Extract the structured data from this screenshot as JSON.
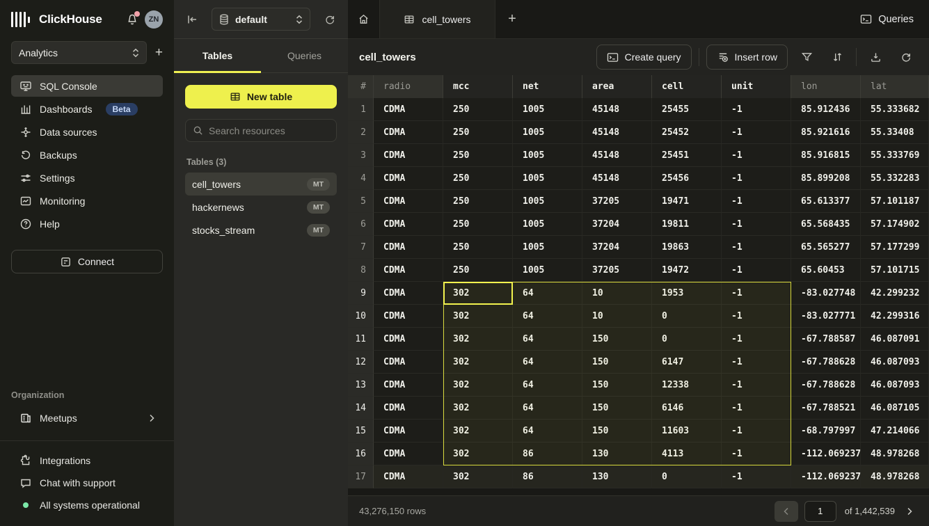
{
  "sidebar": {
    "brand": "ClickHouse",
    "avatar_initials": "ZN",
    "workspace": "Analytics",
    "nav": [
      {
        "label": "SQL Console",
        "active": true
      },
      {
        "label": "Dashboards",
        "badge": "Beta"
      },
      {
        "label": "Data sources"
      },
      {
        "label": "Backups"
      },
      {
        "label": "Settings"
      },
      {
        "label": "Monitoring"
      },
      {
        "label": "Help"
      }
    ],
    "connect_label": "Connect",
    "organization_label": "Organization",
    "org_items": [
      {
        "label": "Meetups"
      }
    ],
    "bottom_items": [
      {
        "label": "Integrations"
      },
      {
        "label": "Chat with support"
      },
      {
        "label": "All systems operational"
      }
    ]
  },
  "explorer": {
    "database": "default",
    "tabs": [
      {
        "label": "Tables",
        "active": true
      },
      {
        "label": "Queries",
        "active": false
      }
    ],
    "new_table_label": "New table",
    "search": {
      "placeholder": "Search resources"
    },
    "section_label": "Tables (3)",
    "tables": [
      {
        "name": "cell_towers",
        "badge": "MT",
        "active": true
      },
      {
        "name": "hackernews",
        "badge": "MT",
        "active": false
      },
      {
        "name": "stocks_stream",
        "badge": "MT",
        "active": false
      }
    ]
  },
  "main": {
    "open_tab": "cell_towers",
    "queries_label": "Queries",
    "title": "cell_towers",
    "create_query_label": "Create query",
    "insert_row_label": "Insert row",
    "table": {
      "columns": [
        "#",
        "radio",
        "mcc",
        "net",
        "area",
        "cell",
        "unit",
        "lon",
        "lat"
      ],
      "rows": [
        [
          "1",
          "CDMA",
          "250",
          "1005",
          "45148",
          "25455",
          "-1",
          "85.912436",
          "55.333682"
        ],
        [
          "2",
          "CDMA",
          "250",
          "1005",
          "45148",
          "25452",
          "-1",
          "85.921616",
          "55.33408"
        ],
        [
          "3",
          "CDMA",
          "250",
          "1005",
          "45148",
          "25451",
          "-1",
          "85.916815",
          "55.333769"
        ],
        [
          "4",
          "CDMA",
          "250",
          "1005",
          "45148",
          "25456",
          "-1",
          "85.899208",
          "55.332283"
        ],
        [
          "5",
          "CDMA",
          "250",
          "1005",
          "37205",
          "19471",
          "-1",
          "65.613377",
          "57.101187"
        ],
        [
          "6",
          "CDMA",
          "250",
          "1005",
          "37204",
          "19811",
          "-1",
          "65.568435",
          "57.174902"
        ],
        [
          "7",
          "CDMA",
          "250",
          "1005",
          "37204",
          "19863",
          "-1",
          "65.565277",
          "57.177299"
        ],
        [
          "8",
          "CDMA",
          "250",
          "1005",
          "37205",
          "19472",
          "-1",
          "65.60453",
          "57.101715"
        ],
        [
          "9",
          "CDMA",
          "302",
          "64",
          "10",
          "1953",
          "-1",
          "-83.027748",
          "42.299232"
        ],
        [
          "10",
          "CDMA",
          "302",
          "64",
          "10",
          "0",
          "-1",
          "-83.027771",
          "42.299316"
        ],
        [
          "11",
          "CDMA",
          "302",
          "64",
          "150",
          "0",
          "-1",
          "-67.788587",
          "46.087091"
        ],
        [
          "12",
          "CDMA",
          "302",
          "64",
          "150",
          "6147",
          "-1",
          "-67.788628",
          "46.087093"
        ],
        [
          "13",
          "CDMA",
          "302",
          "64",
          "150",
          "12338",
          "-1",
          "-67.788628",
          "46.087093"
        ],
        [
          "14",
          "CDMA",
          "302",
          "64",
          "150",
          "6146",
          "-1",
          "-67.788521",
          "46.087105"
        ],
        [
          "15",
          "CDMA",
          "302",
          "64",
          "150",
          "11603",
          "-1",
          "-68.797997",
          "47.214066"
        ],
        [
          "16",
          "CDMA",
          "302",
          "86",
          "130",
          "4113",
          "-1",
          "-112.069237",
          "48.978268"
        ],
        [
          "17",
          "CDMA",
          "302",
          "86",
          "130",
          "0",
          "-1",
          "-112.069237",
          "48.978268"
        ]
      ],
      "selection": {
        "first_row": 9,
        "last_row": 16,
        "first_col_index": 2,
        "last_col_index": 6,
        "active_row": 9,
        "active_col_index": 2
      },
      "hover_row": 17
    },
    "footer": {
      "row_count": "43,276,150 rows",
      "page": "1",
      "of_label": "of 1,442,539"
    }
  },
  "icons": {
    "clickhouse-logo": "vertical bars",
    "bell-icon": "notification bell with pink dot",
    "chevron-updown-icon": "select expander",
    "sql-console-icon": "monitor",
    "dashboards-icon": "column bars",
    "data-sources-icon": "hub with spokes",
    "backups-icon": "rotate-ccw arrow",
    "settings-icon": "sliders",
    "monitoring-icon": "chart in frame",
    "help-icon": "question circle",
    "connect-icon": "connection panel",
    "meetups-icon": "building",
    "integrations-icon": "puzzle piece",
    "chat-icon": "speech bubble",
    "status-dot": "green dot",
    "collapse-icon": "arrow to bar",
    "database-icon": "db cylinder",
    "refresh-icon": "circular arrow",
    "table-icon": "grid",
    "search-icon": "magnifier",
    "home-icon": "house",
    "plus-icon": "+",
    "terminal-icon": "console prompt",
    "insert-row-icon": "rows with marker",
    "filter-icon": "funnel",
    "sort-icon": "down-up arrows",
    "download-icon": "tray with arrow",
    "chevron-left-icon": "‹",
    "chevron-right-icon": "›"
  },
  "colors": {
    "accent_yellow": "#eef04d",
    "selection_yellow": "#d7d83c",
    "active_cell_yellow": "#f2f34e",
    "beta_badge_bg": "#2a3e63",
    "status_green": "#7ce8a8",
    "notification_pink": "#f2a3aa"
  }
}
